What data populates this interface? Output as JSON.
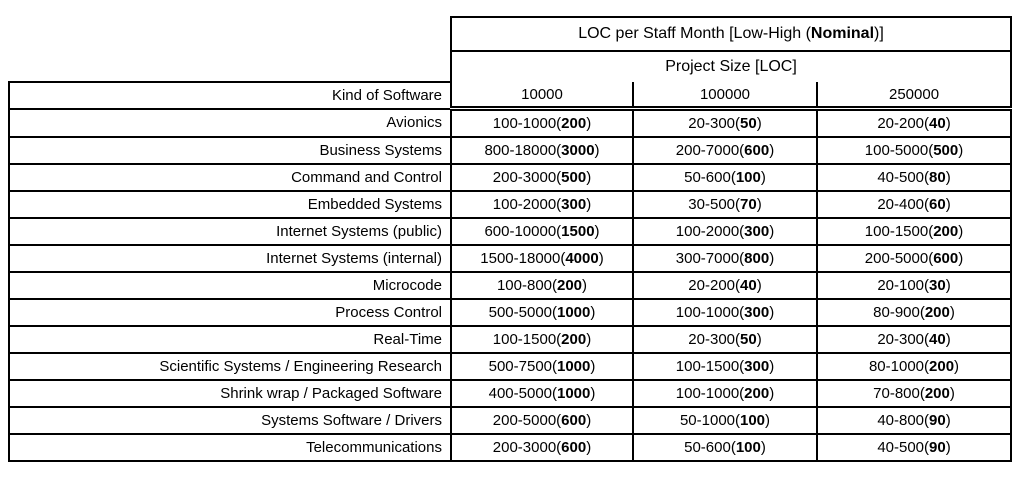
{
  "header": {
    "title_prefix": "LOC per Staff Month [Low-High (",
    "title_bold": "Nominal",
    "title_suffix": ")]",
    "project_size": "Project Size [LOC]"
  },
  "columns": {
    "kind_label": "Kind of Software",
    "sizes": [
      "10000",
      "100000",
      "250000"
    ]
  },
  "format": {
    "open_paren": "(",
    "close_paren": ")"
  },
  "colors": {
    "border": "#000000",
    "text": "#000000",
    "background": "#ffffff"
  },
  "table": {
    "rows": [
      {
        "kind": "Avionics",
        "cells": [
          {
            "range": "100-1000",
            "nominal": "200"
          },
          {
            "range": "20-300",
            "nominal": "50"
          },
          {
            "range": "20-200",
            "nominal": "40"
          }
        ]
      },
      {
        "kind": "Business Systems",
        "cells": [
          {
            "range": "800-18000",
            "nominal": "3000"
          },
          {
            "range": "200-7000",
            "nominal": "600"
          },
          {
            "range": "100-5000",
            "nominal": "500"
          }
        ]
      },
      {
        "kind": "Command and Control",
        "cells": [
          {
            "range": "200-3000",
            "nominal": "500"
          },
          {
            "range": "50-600",
            "nominal": "100"
          },
          {
            "range": "40-500",
            "nominal": "80"
          }
        ]
      },
      {
        "kind": "Embedded Systems",
        "cells": [
          {
            "range": "100-2000",
            "nominal": "300"
          },
          {
            "range": "30-500",
            "nominal": "70"
          },
          {
            "range": "20-400",
            "nominal": "60"
          }
        ]
      },
      {
        "kind": "Internet Systems (public)",
        "cells": [
          {
            "range": "600-10000",
            "nominal": "1500"
          },
          {
            "range": "100-2000",
            "nominal": "300"
          },
          {
            "range": "100-1500",
            "nominal": "200"
          }
        ]
      },
      {
        "kind": "Internet Systems (internal)",
        "cells": [
          {
            "range": "1500-18000",
            "nominal": "4000"
          },
          {
            "range": "300-7000",
            "nominal": "800"
          },
          {
            "range": "200-5000",
            "nominal": "600"
          }
        ]
      },
      {
        "kind": "Microcode",
        "cells": [
          {
            "range": "100-800",
            "nominal": "200"
          },
          {
            "range": "20-200",
            "nominal": "40"
          },
          {
            "range": "20-100",
            "nominal": "30"
          }
        ]
      },
      {
        "kind": "Process Control",
        "cells": [
          {
            "range": "500-5000",
            "nominal": "1000"
          },
          {
            "range": "100-1000",
            "nominal": "300"
          },
          {
            "range": "80-900",
            "nominal": "200"
          }
        ]
      },
      {
        "kind": "Real-Time",
        "cells": [
          {
            "range": "100-1500",
            "nominal": "200"
          },
          {
            "range": "20-300",
            "nominal": "50"
          },
          {
            "range": "20-300",
            "nominal": "40"
          }
        ]
      },
      {
        "kind": "Scientific Systems / Engineering Research",
        "cells": [
          {
            "range": "500-7500",
            "nominal": "1000"
          },
          {
            "range": "100-1500",
            "nominal": "300"
          },
          {
            "range": "80-1000",
            "nominal": "200"
          }
        ]
      },
      {
        "kind": "Shrink wrap / Packaged Software",
        "cells": [
          {
            "range": "400-5000",
            "nominal": "1000"
          },
          {
            "range": "100-1000",
            "nominal": "200"
          },
          {
            "range": "70-800",
            "nominal": "200"
          }
        ]
      },
      {
        "kind": "Systems Software / Drivers",
        "cells": [
          {
            "range": "200-5000",
            "nominal": "600"
          },
          {
            "range": "50-1000",
            "nominal": "100"
          },
          {
            "range": "40-800",
            "nominal": "90"
          }
        ]
      },
      {
        "kind": "Telecommunications",
        "cells": [
          {
            "range": "200-3000",
            "nominal": "600"
          },
          {
            "range": "50-600",
            "nominal": "100"
          },
          {
            "range": "40-500",
            "nominal": "90"
          }
        ]
      }
    ]
  }
}
